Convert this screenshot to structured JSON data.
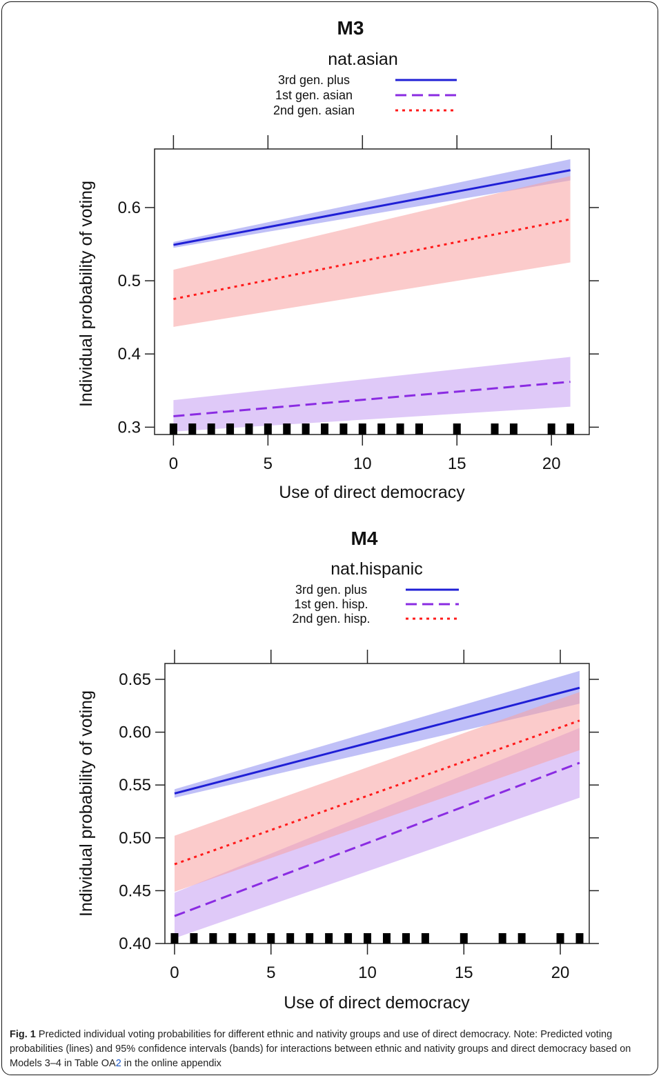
{
  "charts": [
    {
      "title": "M3",
      "legend_title": "nat.asian",
      "ylabel": "Individual probability of voting",
      "xlabel": "Use of direct democracy",
      "xlim": [
        -1,
        22
      ],
      "ylim": [
        0.29,
        0.68
      ],
      "xticks": [
        0,
        5,
        10,
        15,
        20
      ],
      "xtick_labels": [
        "0",
        "5",
        "10",
        "15",
        "20"
      ],
      "yticks": [
        0.3,
        0.4,
        0.5,
        0.6
      ],
      "ytick_labels": [
        "0.3",
        "0.4",
        "0.5",
        "0.6"
      ]
    },
    {
      "title": "M4",
      "legend_title": "nat.hispanic",
      "ylabel": "Individual probability of voting",
      "xlabel": "Use of direct democracy",
      "xlim": [
        -0.5,
        21.5
      ],
      "ylim": [
        0.4,
        0.665
      ],
      "xticks": [
        0,
        5,
        10,
        15,
        20
      ],
      "xtick_labels": [
        "0",
        "5",
        "10",
        "15",
        "20"
      ],
      "yticks": [
        0.4,
        0.45,
        0.5,
        0.55,
        0.6,
        0.65
      ],
      "ytick_labels": [
        "0.40",
        "0.45",
        "0.50",
        "0.55",
        "0.60",
        "0.65"
      ]
    }
  ],
  "chart_data": [
    {
      "type": "line",
      "title": "M3",
      "legend_title": "nat.asian",
      "xlabel": "Use of direct democracy",
      "ylabel": "Individual probability of voting",
      "xlim": [
        -1,
        22
      ],
      "ylim": [
        0.29,
        0.68
      ],
      "rug": [
        0,
        1,
        2,
        3,
        4,
        5,
        6,
        7,
        8,
        9,
        10,
        11,
        12,
        13,
        15,
        17,
        18,
        20,
        21
      ],
      "series": [
        {
          "name": "3rd gen. plus",
          "color": "#1f1fd6",
          "dash": "solid",
          "band_color": "#8c8cf0",
          "x": [
            0,
            21
          ],
          "y": [
            0.549,
            0.651
          ],
          "lower": [
            0.545,
            0.637
          ],
          "upper": [
            0.553,
            0.666
          ]
        },
        {
          "name": "1st gen. asian",
          "color": "#8a2be2",
          "dash": "dashed",
          "band_color": "#c49cf2",
          "x": [
            0,
            21
          ],
          "y": [
            0.315,
            0.362
          ],
          "lower": [
            0.294,
            0.328
          ],
          "upper": [
            0.337,
            0.396
          ]
        },
        {
          "name": "2nd gen. asian",
          "color": "#ff1a1a",
          "dash": "dotted",
          "band_color": "#f7a0a0",
          "x": [
            0,
            21
          ],
          "y": [
            0.475,
            0.584
          ],
          "lower": [
            0.437,
            0.525
          ],
          "upper": [
            0.515,
            0.643
          ]
        }
      ]
    },
    {
      "type": "line",
      "title": "M4",
      "legend_title": "nat.hispanic",
      "xlabel": "Use of direct democracy",
      "ylabel": "Individual probability of voting",
      "xlim": [
        -0.5,
        21.5
      ],
      "ylim": [
        0.4,
        0.665
      ],
      "rug": [
        0,
        1,
        2,
        3,
        4,
        5,
        6,
        7,
        8,
        9,
        10,
        11,
        12,
        13,
        15,
        17,
        18,
        20,
        21
      ],
      "series": [
        {
          "name": "3rd gen. plus",
          "color": "#1f1fd6",
          "dash": "solid",
          "band_color": "#8c8cf0",
          "x": [
            0,
            21
          ],
          "y": [
            0.542,
            0.642
          ],
          "lower": [
            0.538,
            0.627
          ],
          "upper": [
            0.546,
            0.658
          ]
        },
        {
          "name": "1st gen. hisp.",
          "color": "#8a2be2",
          "dash": "dashed",
          "band_color": "#c49cf2",
          "x": [
            0,
            21
          ],
          "y": [
            0.426,
            0.571
          ],
          "lower": [
            0.405,
            0.538
          ],
          "upper": [
            0.448,
            0.604
          ]
        },
        {
          "name": "2nd gen. hisp.",
          "color": "#ff1a1a",
          "dash": "dotted",
          "band_color": "#f7a0a0",
          "x": [
            0,
            21
          ],
          "y": [
            0.475,
            0.611
          ],
          "lower": [
            0.449,
            0.583
          ],
          "upper": [
            0.502,
            0.638
          ]
        }
      ]
    }
  ],
  "caption": {
    "label": "Fig. 1",
    "text_before": " Predicted individual voting probabilities for different ethnic and nativity groups and use of direct democracy. Note: Predicted voting probabilities (lines) and 95% confidence intervals (bands) for interactions between ethnic and nativity groups and direct democracy based on Models 3–4 in Table OA",
    "link": "2",
    "text_after": " in the online appendix"
  }
}
